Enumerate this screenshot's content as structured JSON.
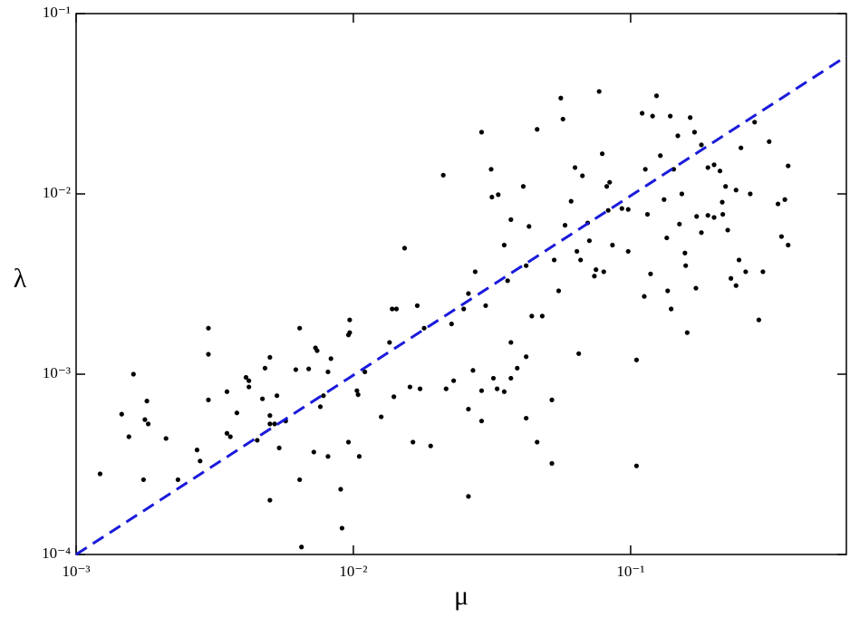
{
  "chart_data": {
    "type": "scatter",
    "xlabel": "μ",
    "ylabel": "λ",
    "xscale": "log",
    "yscale": "log",
    "xlim": [
      0.001,
      0.6
    ],
    "ylim": [
      0.0001,
      0.1
    ],
    "xticks": [
      {
        "value": 0.001,
        "label": "10⁻³"
      },
      {
        "value": 0.01,
        "label": "10⁻²"
      },
      {
        "value": 0.1,
        "label": "10⁻¹"
      }
    ],
    "yticks": [
      {
        "value": 0.0001,
        "label": "10⁻⁴"
      },
      {
        "value": 0.001,
        "label": "10⁻³"
      },
      {
        "value": 0.01,
        "label": "10⁻²"
      },
      {
        "value": 0.1,
        "label": "10⁻¹"
      }
    ],
    "color": "#000000",
    "x": [
      0.00122,
      0.00146,
      0.00161,
      0.00155,
      0.00177,
      0.00182,
      0.0018,
      0.00175,
      0.00211,
      0.00233,
      0.00273,
      0.0028,
      0.003,
      0.003,
      0.003,
      0.0035,
      0.0035,
      0.0036,
      0.0038,
      0.0041,
      0.0042,
      0.0042,
      0.0045,
      0.0047,
      0.0048,
      0.005,
      0.005,
      0.005,
      0.0052,
      0.005,
      0.0053,
      0.0054,
      0.0057,
      0.0062,
      0.0064,
      0.0064,
      0.0065,
      0.0069,
      0.0072,
      0.0073,
      0.0074,
      0.0076,
      0.0078,
      0.0081,
      0.0081,
      0.0083,
      0.009,
      0.0091,
      0.0096,
      0.0096,
      0.0097,
      0.0097,
      0.0103,
      0.0104,
      0.0105,
      0.011,
      0.0126,
      0.0135,
      0.0138,
      0.0143,
      0.014,
      0.0153,
      0.016,
      0.0164,
      0.017,
      0.0174,
      0.018,
      0.019,
      0.0211,
      0.0216,
      0.0226,
      0.025,
      0.026,
      0.026,
      0.026,
      0.0275,
      0.029,
      0.029,
      0.03,
      0.0314,
      0.0316,
      0.0333,
      0.035,
      0.036,
      0.037,
      0.037,
      0.037,
      0.039,
      0.041,
      0.042,
      0.042,
      0.043,
      0.044,
      0.046,
      0.046,
      0.048,
      0.052,
      0.052,
      0.056,
      0.057,
      0.058,
      0.061,
      0.063,
      0.064,
      0.065,
      0.067,
      0.07,
      0.074,
      0.077,
      0.079,
      0.082,
      0.084,
      0.086,
      0.093,
      0.098,
      0.105,
      0.105,
      0.11,
      0.113,
      0.115,
      0.12,
      0.124,
      0.128,
      0.132,
      0.135,
      0.139,
      0.143,
      0.148,
      0.153,
      0.157,
      0.16,
      0.164,
      0.17,
      0.173,
      0.18,
      0.18,
      0.19,
      0.2,
      0.2,
      0.21,
      0.214,
      0.22,
      0.224,
      0.23,
      0.24,
      0.246,
      0.25,
      0.27,
      0.28,
      0.29,
      0.3,
      0.316,
      0.34,
      0.35,
      0.37,
      0.37,
      0.36,
      0.15,
      0.158,
      0.136,
      0.118,
      0.112,
      0.098,
      0.083,
      0.08,
      0.075,
      0.071,
      0.066,
      0.053,
      0.055,
      0.032,
      0.033,
      0.035,
      0.042,
      0.029,
      0.027,
      0.023,
      0.14,
      0.172,
      0.24,
      0.26,
      0.19,
      0.215
    ],
    "values": [
      0.00028,
      0.0006,
      0.001,
      0.00045,
      0.00056,
      0.00053,
      0.00071,
      0.00026,
      0.00044,
      0.00026,
      0.00038,
      0.00033,
      0.00129,
      0.0018,
      0.00072,
      0.0008,
      0.00047,
      0.00045,
      0.00061,
      0.00096,
      0.00092,
      0.00085,
      0.00043,
      0.00073,
      0.00108,
      0.00124,
      0.00059,
      0.00053,
      0.00053,
      0.0002,
      0.00076,
      0.00039,
      0.00055,
      0.00106,
      0.0018,
      0.00026,
      0.00011,
      0.00107,
      0.00037,
      0.0014,
      0.00135,
      0.00066,
      0.00076,
      0.00103,
      0.00035,
      0.00122,
      0.00023,
      0.00014,
      0.00165,
      0.00042,
      0.0017,
      0.002,
      0.00081,
      0.00077,
      0.00035,
      0.00103,
      0.00058,
      0.0015,
      0.0023,
      0.0023,
      0.00075,
      0.005,
      0.00085,
      0.00042,
      0.0024,
      0.00083,
      0.0018,
      0.0004,
      0.0127,
      0.00083,
      0.0019,
      0.0023,
      0.00064,
      0.00021,
      0.0028,
      0.0037,
      0.022,
      0.00055,
      0.0024,
      0.0137,
      0.0096,
      0.0099,
      0.0052,
      0.0033,
      0.0072,
      0.0015,
      0.00095,
      0.00108,
      0.011,
      0.00057,
      0.004,
      0.0066,
      0.0021,
      0.0228,
      0.00042,
      0.0021,
      0.00032,
      0.00072,
      0.034,
      0.026,
      0.0067,
      0.0091,
      0.014,
      0.0048,
      0.0013,
      0.0126,
      0.0069,
      0.0035,
      0.037,
      0.0167,
      0.011,
      0.0116,
      0.0052,
      0.0083,
      0.0048,
      0.0012,
      0.00031,
      0.028,
      0.0137,
      0.0077,
      0.027,
      0.035,
      0.0163,
      0.0093,
      0.0057,
      0.027,
      0.0137,
      0.021,
      0.01,
      0.0047,
      0.0017,
      0.0265,
      0.022,
      0.0075,
      0.0187,
      0.0061,
      0.014,
      0.0074,
      0.0145,
      0.0134,
      0.009,
      0.011,
      0.0063,
      0.0034,
      0.0105,
      0.0043,
      0.018,
      0.01,
      0.025,
      0.002,
      0.0037,
      0.0195,
      0.0088,
      0.0058,
      0.0052,
      0.0143,
      0.0093,
      0.0068,
      0.004,
      0.0029,
      0.0036,
      0.0027,
      0.0082,
      0.0081,
      0.0037,
      0.0038,
      0.0055,
      0.0043,
      0.0043,
      0.0029,
      0.00095,
      0.00083,
      0.0008,
      0.00125,
      0.00081,
      0.00105,
      0.00092,
      0.0023,
      0.003,
      0.0031,
      0.0037,
      0.0076,
      0.0077
    ],
    "fit": {
      "x": [
        0.001,
        0.6
      ],
      "values": [
        0.0001,
        0.058
      ],
      "color": "#1a1adb",
      "dashed": true
    }
  }
}
